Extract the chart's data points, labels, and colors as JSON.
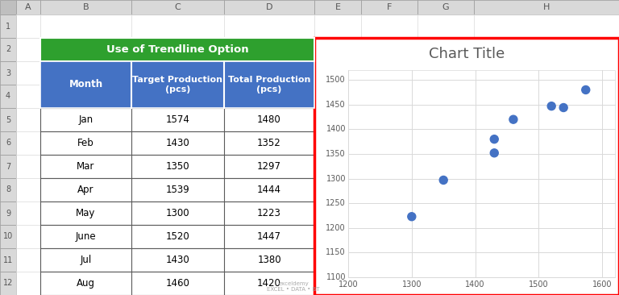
{
  "title": "Chart Title",
  "x_data": [
    1574,
    1430,
    1350,
    1539,
    1300,
    1520,
    1430,
    1460
  ],
  "y_data": [
    1480,
    1352,
    1297,
    1444,
    1223,
    1447,
    1380,
    1420
  ],
  "xlim": [
    1200,
    1620
  ],
  "ylim": [
    1100,
    1520
  ],
  "xticks": [
    1200,
    1300,
    1400,
    1500,
    1600
  ],
  "yticks": [
    1100,
    1150,
    1200,
    1250,
    1300,
    1350,
    1400,
    1450,
    1500
  ],
  "dot_color": "#4472C4",
  "dot_size": 25,
  "title_color": "#595959",
  "title_fontsize": 14,
  "grid_color": "#D9D9D9",
  "bg_color": "#FFFFFF",
  "tick_label_fontsize": 8,
  "tick_label_color": "#595959",
  "excel_bg": "#D9D9D9",
  "excel_header_bg": "#BFBFBF",
  "cell_white": "#FFFFFF",
  "green_header": "#2E8B2E",
  "blue_header": "#4472C4",
  "table_border": "#5B5B5B",
  "months": [
    "Jan",
    "Feb",
    "Mar",
    "Apr",
    "May",
    "June",
    "Jul",
    "Aug"
  ],
  "target_prod": [
    1574,
    1430,
    1350,
    1539,
    1300,
    1520,
    1430,
    1460
  ],
  "total_prod": [
    1480,
    1352,
    1297,
    1444,
    1223,
    1447,
    1380,
    1420
  ],
  "col_headers": [
    "Month",
    "Target Production\n(pcs)",
    "Total Production\n(pcs)"
  ],
  "row_labels": [
    "1",
    "2",
    "3",
    "4",
    "5",
    "6",
    "7",
    "8",
    "9",
    "10",
    "11",
    "12"
  ],
  "col_labels": [
    "A",
    "B",
    "C",
    "D",
    "E",
    "F",
    "G",
    "H"
  ],
  "watermark_text": "EXCEL - DATA - BT"
}
